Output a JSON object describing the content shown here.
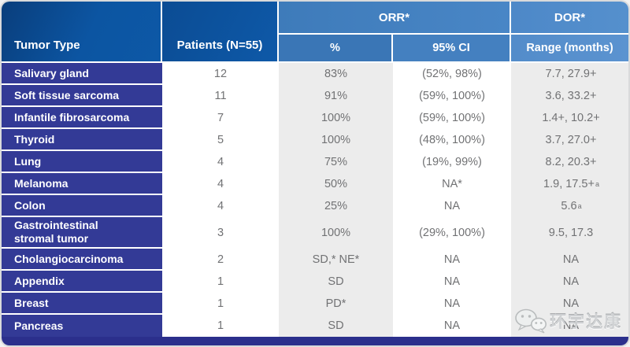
{
  "chart_data": {
    "type": "table",
    "header": {
      "col_tumor": "Tumor Type",
      "col_patients": "Patients (N=55)",
      "group_orr": "ORR*",
      "col_pct": "%",
      "col_ci": "95% CI",
      "group_dor": "DOR*",
      "col_range": "Range (months)"
    },
    "rows": [
      {
        "tumor": "Salivary gland",
        "patients": "12",
        "pct": "83%",
        "ci": "(52%, 98%)",
        "range": "7.7, 27.9+",
        "range_sup": ""
      },
      {
        "tumor": "Soft tissue sarcoma",
        "patients": "11",
        "pct": "91%",
        "ci": "(59%, 100%)",
        "range": "3.6, 33.2+",
        "range_sup": ""
      },
      {
        "tumor": "Infantile fibrosarcoma",
        "patients": "7",
        "pct": "100%",
        "ci": "(59%, 100%)",
        "range": "1.4+, 10.2+",
        "range_sup": ""
      },
      {
        "tumor": "Thyroid",
        "patients": "5",
        "pct": "100%",
        "ci": "(48%, 100%)",
        "range": "3.7, 27.0+",
        "range_sup": ""
      },
      {
        "tumor": "Lung",
        "patients": "4",
        "pct": "75%",
        "ci": "(19%, 99%)",
        "range": "8.2, 20.3+",
        "range_sup": ""
      },
      {
        "tumor": "Melanoma",
        "patients": "4",
        "pct": "50%",
        "ci": "NA*",
        "range": "1.9, 17.5+",
        "range_sup": "a"
      },
      {
        "tumor": "Colon",
        "patients": "4",
        "pct": "25%",
        "ci": "NA",
        "range": "5.6",
        "range_sup": "a"
      },
      {
        "tumor": "Gastrointestinal\nstromal tumor",
        "patients": "3",
        "pct": "100%",
        "ci": "(29%, 100%)",
        "range": "9.5, 17.3",
        "range_sup": ""
      },
      {
        "tumor": "Cholangiocarcinoma",
        "patients": "2",
        "pct": "SD,* NE*",
        "ci": "NA",
        "range": "NA",
        "range_sup": ""
      },
      {
        "tumor": "Appendix",
        "patients": "1",
        "pct": "SD",
        "ci": "NA",
        "range": "NA",
        "range_sup": ""
      },
      {
        "tumor": "Breast",
        "patients": "1",
        "pct": "PD*",
        "ci": "NA",
        "range": "NA",
        "range_sup": ""
      },
      {
        "tumor": "Pancreas",
        "patients": "1",
        "pct": "SD",
        "ci": "NA",
        "range": "NA",
        "range_sup": ""
      }
    ]
  },
  "watermark": {
    "icon": "wechat-icon",
    "text": "环宇达康"
  },
  "colors": {
    "header_dark_blue": "#0c55a2",
    "header_light_blue": "#4886c6",
    "row_label_indigo": "#333a96",
    "bottom_bar_navy": "#2b2f8c",
    "alt_column_gray": "#ececec",
    "data_text_gray": "#717274"
  }
}
